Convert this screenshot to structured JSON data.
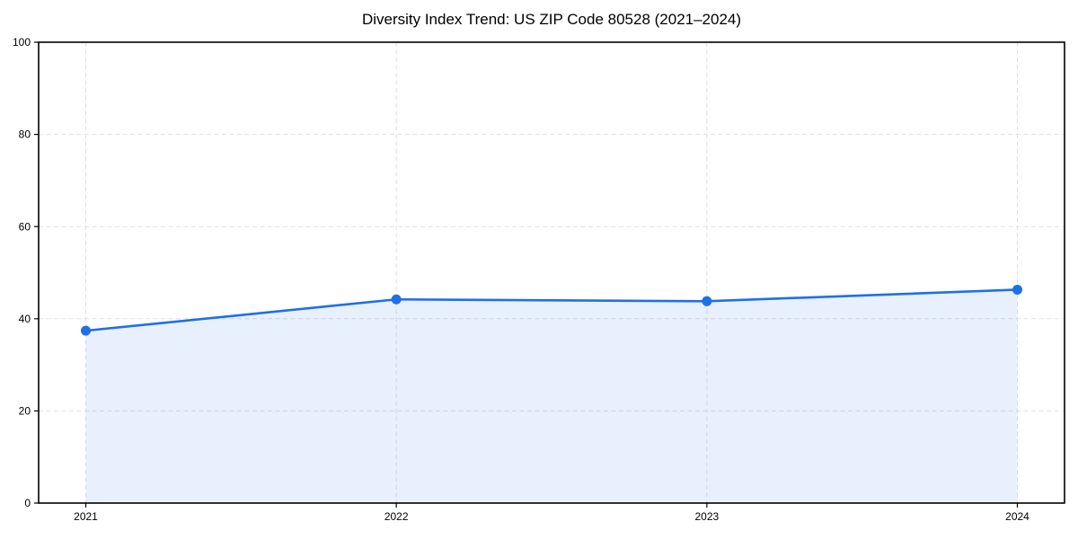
{
  "figure": {
    "background": "#ffffff"
  },
  "chart_data": {
    "type": "area",
    "title": "Diversity Index Trend: US ZIP Code 80528 (2021–2024)",
    "categories": [
      "2021",
      "2022",
      "2023",
      "2024"
    ],
    "series": [
      {
        "name": "Diversity Index",
        "values": [
          37.4,
          44.2,
          43.8,
          46.3
        ]
      }
    ],
    "xlabel": "",
    "ylabel": "",
    "ylim": [
      0,
      100
    ],
    "yticks": [
      0,
      20,
      40,
      60,
      80,
      100
    ],
    "grid": true,
    "grid_style": "dashed",
    "legend": "none",
    "marker": "circle",
    "colors": {
      "line": "#1f6fe8",
      "marker": "#1f6fe8",
      "area_fill": "#1f6fe8",
      "area_opacity": 0.1,
      "grid": "#e0e0e0",
      "axis": "#000000",
      "text": "#000000"
    }
  }
}
